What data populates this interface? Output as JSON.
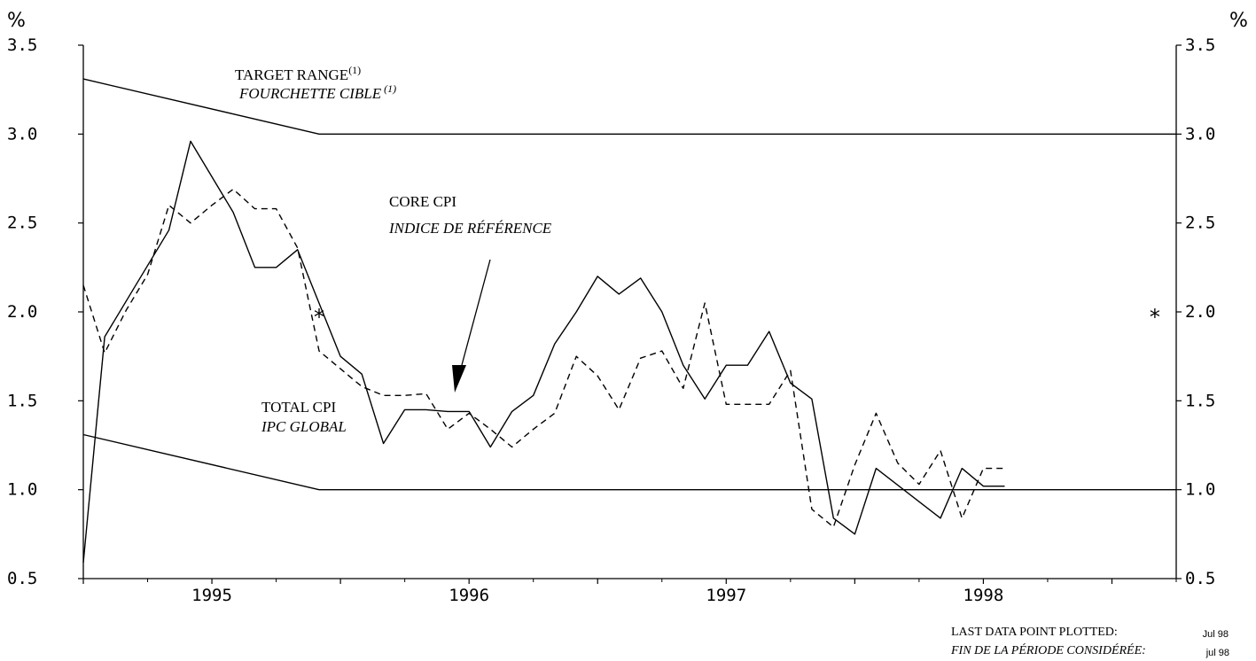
{
  "chart_data": {
    "type": "line",
    "unit_left": "%",
    "unit_right": "%",
    "ylim": [
      0.5,
      3.5
    ],
    "yticks": [
      "0.5",
      "1.0",
      "1.5",
      "2.0",
      "2.5",
      "3.0",
      "3.5"
    ],
    "xlim": [
      1994.5,
      1998.75
    ],
    "year_labels": [
      "1995",
      "1996",
      "1997",
      "1998"
    ],
    "series": [
      {
        "name": "TOTAL CPI",
        "style": "solid",
        "x": [
          1994.5,
          1994.583,
          1994.833,
          1994.917,
          1995.083,
          1995.167,
          1995.25,
          1995.333,
          1995.5,
          1995.583,
          1995.667,
          1995.75,
          1995.833,
          1995.917,
          1996.0,
          1996.083,
          1996.167,
          1996.25,
          1996.333,
          1996.417,
          1996.5,
          1996.583,
          1996.667,
          1996.75,
          1996.833,
          1996.917,
          1997.0,
          1997.083,
          1997.167,
          1997.25,
          1997.333,
          1997.417,
          1997.5,
          1997.583,
          1997.833,
          1997.917,
          1998.0,
          1998.083
        ],
        "values": [
          0.59,
          1.86,
          2.46,
          2.96,
          2.56,
          2.25,
          2.25,
          2.35,
          1.75,
          1.65,
          1.26,
          1.45,
          1.45,
          1.44,
          1.44,
          1.24,
          1.44,
          1.53,
          1.82,
          2.0,
          2.2,
          2.1,
          2.19,
          2.0,
          1.7,
          1.51,
          1.7,
          1.7,
          1.89,
          1.6,
          1.51,
          0.84,
          0.75,
          1.12,
          0.84,
          1.12,
          1.02,
          1.02
        ]
      },
      {
        "name": "CORE CPI",
        "style": "dashed",
        "x": [
          1994.5,
          1994.583,
          1994.667,
          1994.75,
          1994.833,
          1994.917,
          1995.0,
          1995.083,
          1995.167,
          1995.25,
          1995.333,
          1995.417,
          1995.5,
          1995.583,
          1995.667,
          1995.75,
          1995.833,
          1995.917,
          1996.0,
          1996.083,
          1996.167,
          1996.25,
          1996.333,
          1996.417,
          1996.5,
          1996.583,
          1996.667,
          1996.75,
          1996.833,
          1996.917,
          1997.0,
          1997.083,
          1997.167,
          1997.25,
          1997.333,
          1997.417,
          1997.5,
          1997.583,
          1997.667,
          1997.75,
          1997.833,
          1997.917,
          1998.0,
          1998.083
        ],
        "values": [
          2.15,
          1.77,
          2.01,
          2.21,
          2.6,
          2.5,
          2.6,
          2.69,
          2.58,
          2.58,
          2.36,
          1.78,
          1.68,
          1.58,
          1.53,
          1.53,
          1.54,
          1.34,
          1.43,
          1.34,
          1.24,
          1.34,
          1.43,
          1.75,
          1.64,
          1.45,
          1.74,
          1.78,
          1.57,
          2.05,
          1.48,
          1.48,
          1.48,
          1.67,
          0.89,
          0.79,
          1.14,
          1.43,
          1.15,
          1.03,
          1.22,
          0.84,
          1.12,
          1.12
        ]
      },
      {
        "name": "TARGET RANGE upper",
        "style": "solid",
        "x": [
          1994.5,
          1995.417,
          1998.75
        ],
        "values": [
          3.31,
          3.0,
          3.0
        ]
      },
      {
        "name": "TARGET RANGE lower",
        "style": "solid",
        "x": [
          1994.5,
          1995.417,
          1998.75
        ],
        "values": [
          1.31,
          1.0,
          1.0
        ]
      }
    ],
    "markers": [
      {
        "symbol": "*",
        "x": 1995.417,
        "value": 2.0
      },
      {
        "symbol": "*",
        "x": 1998.667,
        "value": 2.0
      }
    ],
    "annotations": {
      "target_en": "TARGET RANGE",
      "target_sup_en": "(1)",
      "target_fr": "FOURCHETTE CIBLE",
      "target_sup_fr": "(1)",
      "core_en": "CORE CPI",
      "core_fr": "INDICE DE RÉFÉRENCE",
      "total_en": "TOTAL CPI",
      "total_fr": "IPC GLOBAL"
    },
    "footer": {
      "label_en": "LAST DATA POINT PLOTTED:",
      "label_fr": "FIN DE LA PÉRIODE CONSIDÉRÉE:",
      "value_en": "Jul 98",
      "value_fr": "jul 98"
    },
    "arrow_target": {
      "x": 1995.917,
      "value": 1.54
    }
  }
}
